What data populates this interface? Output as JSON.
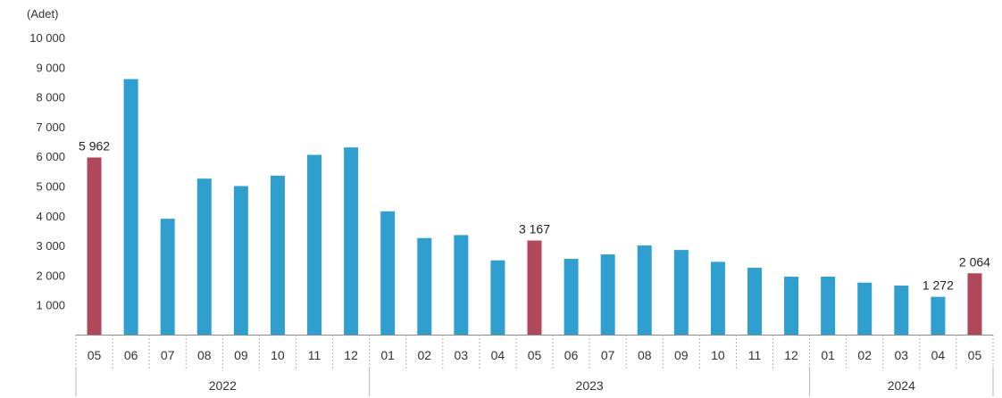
{
  "chart_data": {
    "type": "bar",
    "unit_label": "(Adet)",
    "categories": [
      "05",
      "06",
      "07",
      "08",
      "09",
      "10",
      "11",
      "12",
      "01",
      "02",
      "03",
      "04",
      "05",
      "06",
      "07",
      "08",
      "09",
      "10",
      "11",
      "12",
      "01",
      "02",
      "03",
      "04",
      "05"
    ],
    "values": [
      5962,
      8600,
      3900,
      5250,
      5000,
      5350,
      6050,
      6300,
      4150,
      3250,
      3350,
      2500,
      3167,
      2550,
      2700,
      3000,
      2850,
      2450,
      2250,
      1950,
      1950,
      1750,
      1650,
      1272,
      2064
    ],
    "highlighted": [
      0,
      12,
      24
    ],
    "data_labels": [
      {
        "index": 0,
        "text": "5 962"
      },
      {
        "index": 12,
        "text": "3 167"
      },
      {
        "index": 23,
        "text": "1 272"
      },
      {
        "index": 24,
        "text": "2 064"
      }
    ],
    "year_groups": [
      {
        "label": "2022",
        "start": 0,
        "end": 7
      },
      {
        "label": "2023",
        "start": 8,
        "end": 19
      },
      {
        "label": "2024",
        "start": 20,
        "end": 24
      }
    ],
    "y_ticks": [
      {
        "value": 1000,
        "label": "1 000"
      },
      {
        "value": 2000,
        "label": "2 000"
      },
      {
        "value": 3000,
        "label": "3 000"
      },
      {
        "value": 4000,
        "label": "4 000"
      },
      {
        "value": 5000,
        "label": "5 000"
      },
      {
        "value": 6000,
        "label": "6 000"
      },
      {
        "value": 7000,
        "label": "7 000"
      },
      {
        "value": 8000,
        "label": "8 000"
      },
      {
        "value": 9000,
        "label": "9 000"
      },
      {
        "value": 10000,
        "label": "10 000"
      }
    ],
    "ylim": [
      0,
      10000
    ],
    "grid": false,
    "colors": {
      "bar": "#2f9fd0",
      "highlight": "#b0475a"
    }
  }
}
